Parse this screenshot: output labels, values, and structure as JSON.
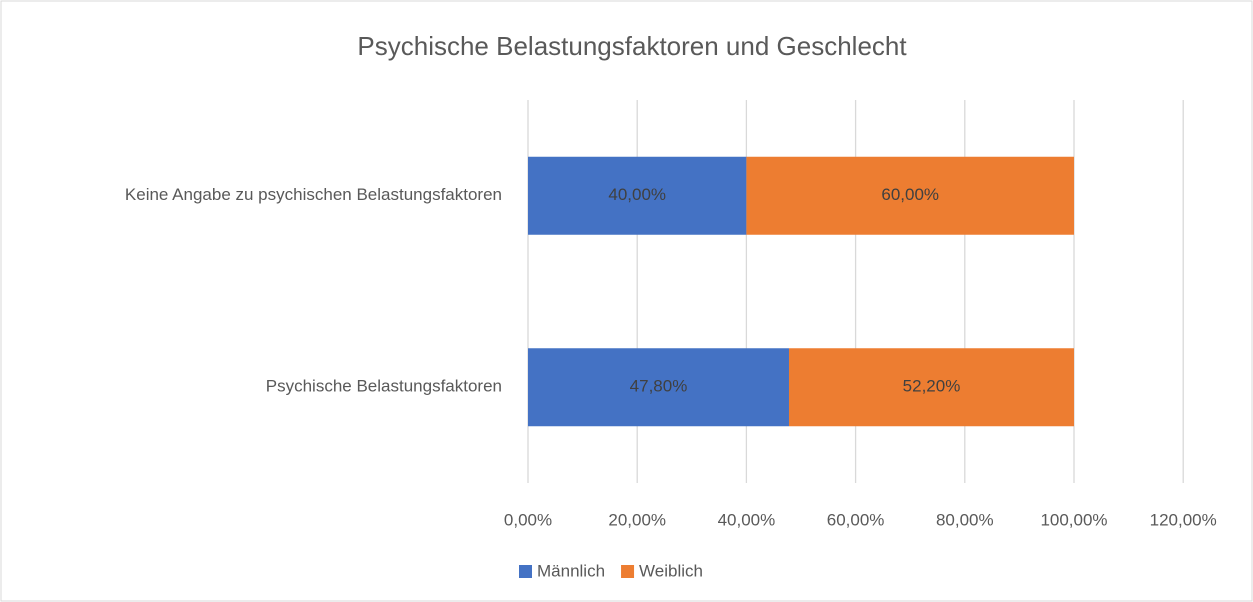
{
  "chart_data": {
    "type": "stacked_barh",
    "title": "Psychische Belastungsfaktoren und Geschlecht",
    "categories": [
      "Keine Angabe zu psychischen Belastungsfaktoren",
      "Psychische Belastungsfaktoren"
    ],
    "series": [
      {
        "name": "Männlich",
        "color": "#4472c4",
        "values": [
          40,
          47.8
        ],
        "value_labels": [
          "40,00%",
          "47,80%"
        ]
      },
      {
        "name": "Weiblich",
        "color": "#ed7d31",
        "values": [
          60,
          52.2
        ],
        "value_labels": [
          "60,00%",
          "52,20%"
        ]
      }
    ],
    "xlim": [
      0,
      120
    ],
    "xticks": [
      {
        "value": 0,
        "label": "0,00%"
      },
      {
        "value": 20,
        "label": "20,00%"
      },
      {
        "value": 40,
        "label": "40,00%"
      },
      {
        "value": 60,
        "label": "60,00%"
      },
      {
        "value": 80,
        "label": "80,00%"
      },
      {
        "value": 100,
        "label": "100,00%"
      },
      {
        "value": 120,
        "label": "120,00%"
      }
    ],
    "grid": true,
    "legend": "bottom"
  }
}
